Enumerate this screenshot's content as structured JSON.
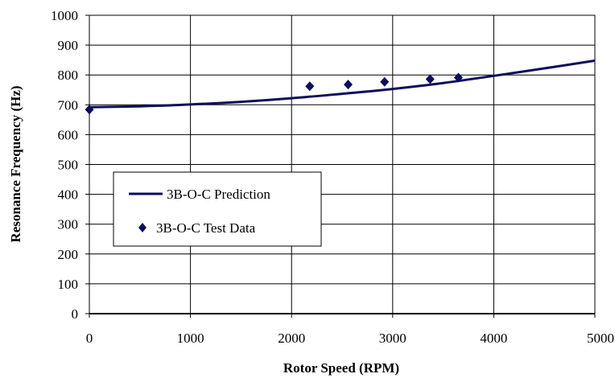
{
  "chart_data": {
    "type": "line",
    "title": "",
    "xlabel": "Rotor Speed (RPM)",
    "ylabel": "Resonance Frequency (Hz)",
    "xlim": [
      0,
      5000
    ],
    "ylim": [
      0,
      1000
    ],
    "xticks": [
      0,
      1000,
      2000,
      3000,
      4000,
      5000
    ],
    "yticks": [
      0,
      100,
      200,
      300,
      400,
      500,
      600,
      700,
      800,
      900,
      1000
    ],
    "grid": true,
    "legend_position": "left-middle",
    "colors": {
      "series": "#0d0d5c"
    },
    "series": [
      {
        "name": "3B-O-C Prediction",
        "style": "line",
        "x": [
          0,
          500,
          1000,
          1500,
          2000,
          2500,
          3000,
          3500,
          4000,
          4500,
          5000
        ],
        "y": [
          692,
          695,
          701,
          710,
          722,
          737,
          753,
          773,
          797,
          822,
          848
        ]
      },
      {
        "name": "3B-O-C Test Data",
        "style": "diamond-markers",
        "x": [
          0,
          2180,
          2560,
          2920,
          3370,
          3650
        ],
        "y": [
          684,
          762,
          768,
          777,
          786,
          791
        ]
      }
    ]
  }
}
